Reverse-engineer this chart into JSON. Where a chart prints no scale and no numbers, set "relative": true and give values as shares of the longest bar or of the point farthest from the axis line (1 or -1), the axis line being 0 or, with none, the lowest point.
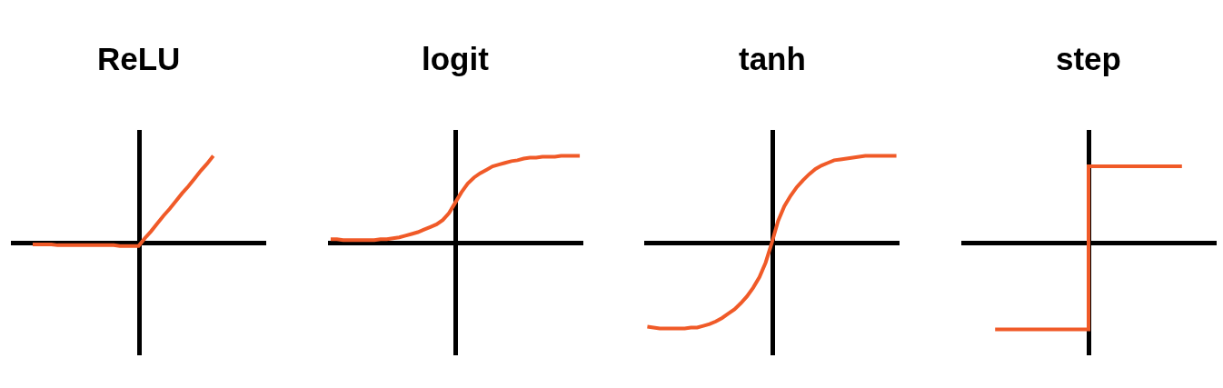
{
  "chart_data": [
    {
      "type": "line",
      "title": "ReLU",
      "relative": true,
      "color": "#f05a28",
      "categories": [
        null,
        null,
        null,
        null,
        null,
        null,
        null,
        null,
        null,
        null,
        null,
        null,
        null,
        null,
        null,
        null,
        null,
        null,
        null,
        null,
        null,
        null,
        null,
        null,
        null,
        null,
        null,
        null,
        null,
        null,
        null,
        null,
        null,
        null,
        null,
        null,
        null,
        null,
        null,
        null,
        null
      ],
      "values": [
        null,
        null,
        null,
        -0.02,
        -0.02,
        -0.02,
        -0.02,
        -0.03,
        -0.03,
        -0.03,
        -0.03,
        -0.03,
        -0.03,
        -0.03,
        -0.03,
        -0.03,
        -0.03,
        -0.04,
        -0.04,
        -0.04,
        -0.04,
        0.05,
        0.13,
        0.22,
        0.31,
        0.39,
        0.48,
        0.57,
        0.65,
        0.74,
        0.83,
        0.91,
        1,
        null,
        null,
        null,
        null,
        null,
        null,
        null,
        null
      ]
    },
    {
      "type": "line",
      "title": "logit",
      "relative": true,
      "color": "#f05a28",
      "categories": [
        null,
        null,
        null,
        null,
        null,
        null,
        null,
        null,
        null,
        null,
        null,
        null,
        null,
        null,
        null,
        null,
        null,
        null,
        null,
        null,
        null,
        null,
        null,
        null,
        null,
        null,
        null,
        null,
        null,
        null,
        null,
        null,
        null,
        null,
        null,
        null,
        null,
        null,
        null,
        null,
        null
      ],
      "values": [
        0.04,
        0.04,
        0.03,
        0.03,
        0.03,
        0.03,
        0.03,
        0.03,
        0.04,
        0.04,
        0.05,
        0.06,
        0.08,
        0.1,
        0.12,
        0.15,
        0.18,
        0.21,
        0.26,
        0.34,
        0.46,
        0.58,
        0.68,
        0.75,
        0.8,
        0.84,
        0.88,
        0.9,
        0.92,
        0.94,
        0.95,
        0.97,
        0.98,
        0.98,
        0.99,
        0.99,
        0.99,
        1,
        1,
        1,
        1
      ]
    },
    {
      "type": "line",
      "title": "tanh",
      "relative": true,
      "color": "#f05a28",
      "categories": [
        null,
        null,
        null,
        null,
        null,
        null,
        null,
        null,
        null,
        null,
        null,
        null,
        null,
        null,
        null,
        null,
        null,
        null,
        null,
        null,
        null,
        null,
        null,
        null,
        null,
        null,
        null,
        null,
        null,
        null,
        null,
        null,
        null,
        null,
        null,
        null,
        null,
        null,
        null,
        null,
        null
      ],
      "values": [
        -0.97,
        -0.98,
        -0.99,
        -0.99,
        -0.99,
        -0.99,
        -0.99,
        -0.98,
        -0.98,
        -0.96,
        -0.94,
        -0.91,
        -0.87,
        -0.82,
        -0.77,
        -0.7,
        -0.62,
        -0.52,
        -0.4,
        -0.23,
        0,
        0.25,
        0.42,
        0.54,
        0.64,
        0.72,
        0.79,
        0.85,
        0.89,
        0.92,
        0.95,
        0.96,
        0.97,
        0.98,
        0.99,
        1,
        1,
        1,
        1,
        1,
        1
      ]
    },
    {
      "type": "step",
      "title": "step",
      "relative": true,
      "color": "#f05a28",
      "categories": [
        null,
        null,
        null,
        null,
        null,
        null,
        null,
        null,
        null,
        null,
        null,
        null,
        null,
        null,
        null,
        null,
        null,
        null,
        null,
        null,
        null,
        null,
        null,
        null,
        null,
        null,
        null,
        null,
        null,
        null,
        null,
        null,
        null,
        null,
        null,
        null,
        null,
        null,
        null,
        null,
        null
      ],
      "values": [
        null,
        null,
        null,
        null,
        null,
        -1,
        -1,
        -1,
        -1,
        -1,
        -1,
        -1,
        -1,
        -1,
        -1,
        -1,
        -1,
        -1,
        -1,
        -1,
        0.88,
        0.88,
        0.88,
        0.88,
        0.88,
        0.88,
        0.88,
        0.88,
        0.88,
        0.88,
        0.88,
        0.88,
        0.88,
        0.88,
        0.88,
        0.88,
        null,
        null,
        null,
        null,
        null
      ]
    }
  ]
}
